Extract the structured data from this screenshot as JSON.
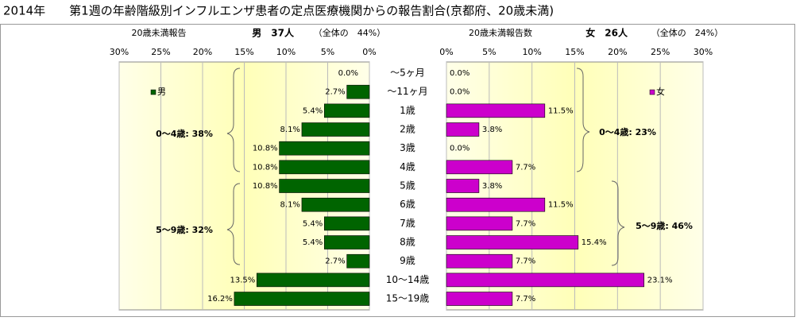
{
  "chart_data": [
    {
      "type": "bar",
      "title": "2014年　　第1週の年齢階級別インフルエンザ患者の定点医療機関からの報告割合(京都府、20歳未満)",
      "subtitle": "20歳未満報告",
      "header": "男　37人",
      "share": "（全体の　44%）",
      "categories": [
        "～5ヶ月",
        "～11ヶ月",
        "1歳",
        "2歳",
        "3歳",
        "4歳",
        "5歳",
        "6歳",
        "7歳",
        "8歳",
        "9歳",
        "10～14歳",
        "15～19歳"
      ],
      "series": [
        {
          "name": "男",
          "color": "#006400",
          "values": [
            0.0,
            2.7,
            5.4,
            8.1,
            10.8,
            10.8,
            10.8,
            8.1,
            5.4,
            5.4,
            2.7,
            13.5,
            16.2
          ],
          "value_labels": [
            "0.0%",
            "2.7%",
            "5.4%",
            "8.1%",
            "10.8%",
            "10.8%",
            "10.8%",
            "8.1%",
            "5.4%",
            "5.4%",
            "2.7%",
            "13.5%",
            "16.2%"
          ]
        }
      ],
      "annotations": [
        "0～4歳: 38%",
        "5～9歳: 32%"
      ],
      "xlim": [
        0,
        30
      ],
      "x_reversed": true,
      "xticks": [
        {
          "value": 30,
          "label": "30%"
        },
        {
          "value": 25,
          "label": "25%"
        },
        {
          "value": 20,
          "label": "20%"
        },
        {
          "value": 15,
          "label": "15%"
        },
        {
          "value": 10,
          "label": "10%"
        },
        {
          "value": 5,
          "label": "5%"
        },
        {
          "value": 0,
          "label": "0%"
        }
      ],
      "grid": true
    },
    {
      "type": "bar",
      "subtitle": "20歳未満報告数",
      "header": "女　26人",
      "share": "（全体の　24%）",
      "series": [
        {
          "name": "女",
          "color": "#cc00cc",
          "values": [
            0.0,
            0.0,
            11.5,
            3.8,
            0.0,
            7.7,
            3.8,
            11.5,
            7.7,
            15.4,
            7.7,
            23.1,
            7.7
          ],
          "value_labels": [
            "0.0%",
            "0.0%",
            "11.5%",
            "3.8%",
            "0.0%",
            "7.7%",
            "3.8%",
            "11.5%",
            "7.7%",
            "15.4%",
            "7.7%",
            "23.1%",
            "7.7%"
          ]
        }
      ],
      "annotations": [
        "0～4歳: 23%",
        "5～9歳: 46%"
      ],
      "xlim": [
        0,
        30
      ],
      "x_reversed": false,
      "xticks": [
        {
          "value": 0,
          "label": "0%"
        },
        {
          "value": 5,
          "label": "5%"
        },
        {
          "value": 10,
          "label": "10%"
        },
        {
          "value": 15,
          "label": "15%"
        },
        {
          "value": 20,
          "label": "20%"
        },
        {
          "value": 25,
          "label": "25%"
        },
        {
          "value": 30,
          "label": "30%"
        }
      ],
      "grid": true
    }
  ]
}
